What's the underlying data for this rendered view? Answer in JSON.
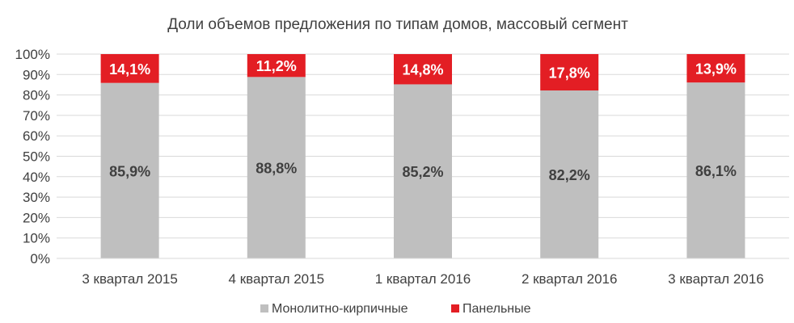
{
  "chart_data": {
    "type": "bar",
    "stacked": true,
    "title": "Доли объемов предложения по типам домов, массовый сегмент",
    "categories": [
      "3 квартал 2015",
      "4 квартал 2015",
      "1 квартал 2016",
      "2 квартал 2016",
      "3 квартал 2016"
    ],
    "series": [
      {
        "name": "Монолитно-кирпичные",
        "values": [
          85.9,
          88.8,
          85.2,
          82.2,
          86.1
        ],
        "labels": [
          "85,9%",
          "88,8%",
          "85,2%",
          "82,2%",
          "86,1%"
        ],
        "color": "#bfbfbf"
      },
      {
        "name": "Панельные",
        "values": [
          14.1,
          11.2,
          14.8,
          17.8,
          13.9
        ],
        "labels": [
          "14,1%",
          "11,2%",
          "14,8%",
          "17,8%",
          "13,9%"
        ],
        "color": "#e31e24"
      }
    ],
    "ylim": [
      0,
      100
    ],
    "yticks": [
      "0%",
      "10%",
      "20%",
      "30%",
      "40%",
      "50%",
      "60%",
      "70%",
      "80%",
      "90%",
      "100%"
    ],
    "grid": true,
    "legend": "bottom"
  }
}
